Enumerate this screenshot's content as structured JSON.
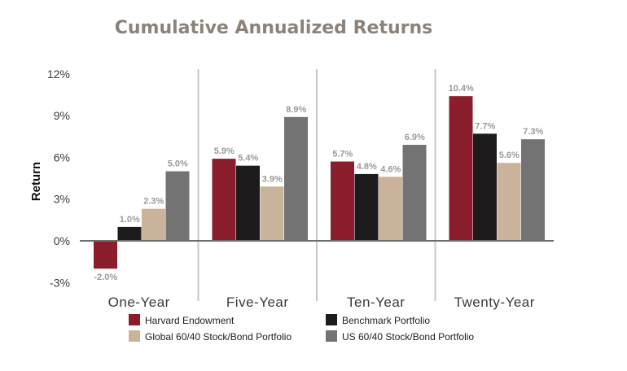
{
  "chart_data": {
    "type": "bar",
    "title": "Cumulative Annualized Returns",
    "xlabel": "",
    "ylabel": "Return",
    "categories": [
      "One-Year",
      "Five-Year",
      "Ten-Year",
      "Twenty-Year"
    ],
    "ylim": [
      -3,
      12
    ],
    "yticks": [
      "12%",
      "9%",
      "6%",
      "3%",
      "0%",
      "-3%"
    ],
    "ytick_values": [
      12,
      9,
      6,
      3,
      0,
      -3
    ],
    "legend_position": "bottom",
    "grid": false,
    "series": [
      {
        "name": "Harvard Endowment",
        "color": "#8b1e2d",
        "values": [
          -2.0,
          5.9,
          5.7,
          10.4
        ],
        "labels": [
          "-2.0%",
          "5.9%",
          "5.7%",
          "10.4%"
        ]
      },
      {
        "name": "Benchmark Portfolio",
        "color": "#1e1b1c",
        "values": [
          1.0,
          5.4,
          4.8,
          7.7
        ],
        "labels": [
          "1.0%",
          "5.4%",
          "4.8%",
          "7.7%"
        ]
      },
      {
        "name": "Global 60/40 Stock/Bond Portfolio",
        "color": "#c9b39a",
        "values": [
          2.3,
          3.9,
          4.6,
          5.6
        ],
        "labels": [
          "2.3%",
          "3.9%",
          "4.6%",
          "5.6%"
        ]
      },
      {
        "name": "US 60/40 Stock/Bond Portfolio",
        "color": "#737373",
        "values": [
          5.0,
          8.9,
          6.9,
          7.3
        ],
        "labels": [
          "5.0%",
          "8.9%",
          "6.9%",
          "7.3%"
        ]
      }
    ]
  }
}
